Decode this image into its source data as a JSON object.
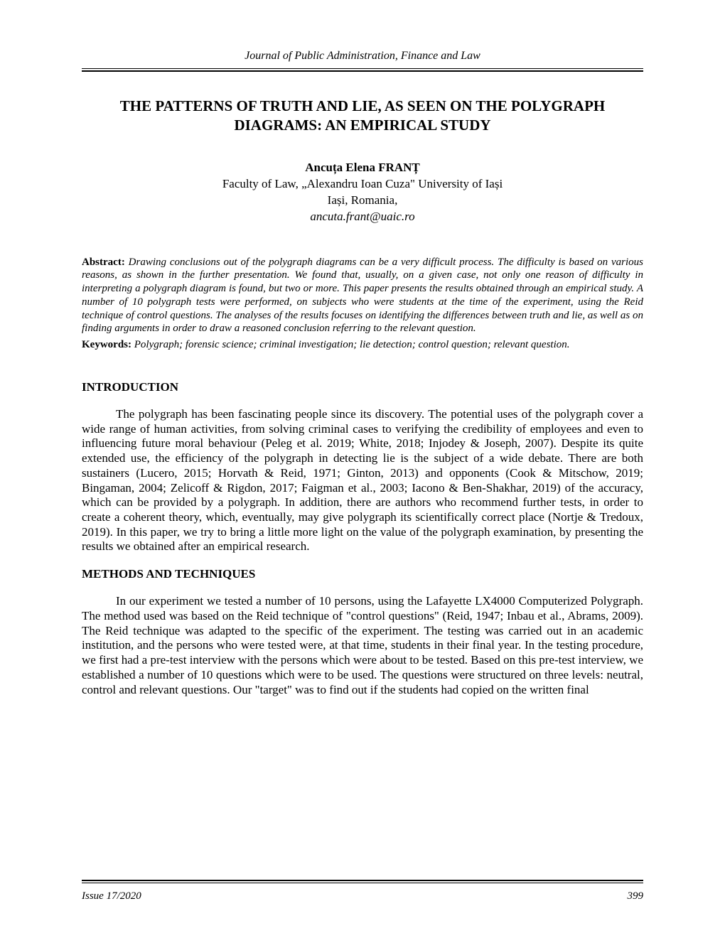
{
  "journal_header": "Journal of Public Administration, Finance and Law",
  "title": "THE PATTERNS OF TRUTH AND LIE, AS SEEN ON THE POLYGRAPH DIAGRAMS: AN EMPIRICAL STUDY",
  "author": "Ancuța Elena FRANȚ",
  "affiliation": "Faculty of Law, „Alexandru Ioan Cuza\" University of Iași",
  "location": "Iași, Romania,",
  "email": "ancuta.frant@uaic.ro",
  "abstract_label": "Abstract: ",
  "abstract_text": "Drawing conclusions out of the polygraph diagrams can be a very difficult process. The difficulty is based on various reasons, as shown in the further presentation. We found that, usually, on a given case, not only one reason of difficulty in interpreting a polygraph diagram is found, but two or more. This paper presents the results obtained through an empirical study. A number of 10 polygraph tests were performed, on subjects who were students at the time of the experiment, using the Reid technique of control questions. The analyses of the results focuses on identifying the differences between truth and lie, as well as on finding arguments in order to draw a reasoned conclusion referring to the relevant question.",
  "keywords_label": "Keywords: ",
  "keywords_text": "Polygraph; forensic science; criminal investigation; lie detection; control question; relevant question.",
  "sections": {
    "introduction": {
      "heading": "INTRODUCTION",
      "paragraph": "The polygraph has been fascinating people since its discovery. The potential uses of the polygraph cover a wide range of human activities, from solving criminal cases to verifying the credibility of employees and even to influencing future moral behaviour (Peleg et al. 2019; White, 2018; Injodey & Joseph, 2007). Despite its quite extended use, the efficiency of the polygraph in detecting lie is the subject of a wide debate. There are both sustainers (Lucero, 2015; Horvath & Reid, 1971; Ginton, 2013) and opponents (Cook & Mitschow, 2019; Bingaman, 2004; Zelicoff & Rigdon, 2017; Faigman et al., 2003; Iacono & Ben-Shakhar, 2019) of the accuracy, which can be provided by a polygraph. In addition, there are authors who recommend further tests, in order to create a coherent theory, which, eventually, may give polygraph its scientifically correct place (Nortje & Tredoux, 2019). In this paper, we try to bring a little more light on the value of the polygraph examination, by presenting the results we obtained after an empirical research."
    },
    "methods": {
      "heading": "METHODS AND TECHNIQUES",
      "paragraph": "In our experiment we tested a number of 10 persons, using the Lafayette LX4000 Computerized Polygraph. The method used was based on the Reid technique of \"control questions\" (Reid, 1947; Inbau et al., Abrams, 2009). The Reid technique was adapted to the specific of the experiment. The testing was carried out in an academic institution, and the persons who were tested were, at that time, students in their final year. In the testing procedure, we first had a pre-test interview with the persons which were about to be tested. Based on this pre-test interview, we established a number of 10 questions which were to be used. The questions were structured on three levels: neutral, control and relevant questions. Our \"target\" was to find out if the students had copied on the written final"
    }
  },
  "footer": {
    "issue": "Issue 17/2020",
    "page": "399"
  }
}
